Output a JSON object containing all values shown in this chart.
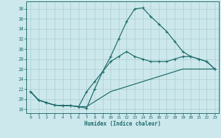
{
  "xlabel": "Humidex (Indice chaleur)",
  "background_color": "#cce8ec",
  "grid_color": "#aacccc",
  "line_color": "#1e6b6b",
  "x_ticks": [
    0,
    1,
    2,
    3,
    4,
    5,
    6,
    7,
    8,
    9,
    10,
    11,
    12,
    13,
    14,
    15,
    16,
    17,
    18,
    19,
    20,
    21,
    22,
    23
  ],
  "y_ticks": [
    18,
    20,
    22,
    24,
    26,
    28,
    30,
    32,
    34,
    36,
    38
  ],
  "ylim": [
    17.2,
    39.5
  ],
  "xlim": [
    -0.5,
    23.5
  ],
  "line1_x": [
    0,
    1,
    2,
    3,
    4,
    5,
    6,
    7,
    8,
    9,
    10,
    11,
    12,
    13,
    14,
    15,
    16,
    17,
    18,
    19,
    20,
    21,
    22,
    23
  ],
  "line1_y": [
    21.5,
    19.8,
    19.3,
    18.8,
    18.7,
    18.7,
    18.5,
    18.2,
    22.0,
    25.5,
    28.5,
    32.0,
    35.5,
    38.0,
    38.2,
    36.5,
    35.0,
    33.5,
    31.5,
    29.5,
    28.5,
    28.0,
    27.5,
    26.0
  ],
  "line2_x": [
    0,
    1,
    2,
    3,
    4,
    5,
    6,
    7,
    8,
    9,
    10,
    11,
    12,
    13,
    14,
    15,
    16,
    17,
    18,
    19,
    20,
    21,
    22,
    23
  ],
  "line2_y": [
    21.5,
    19.8,
    19.3,
    18.8,
    18.7,
    18.7,
    18.5,
    21.5,
    23.5,
    25.5,
    27.5,
    28.5,
    29.5,
    28.5,
    28.0,
    27.5,
    27.5,
    27.5,
    28.0,
    28.5,
    28.5,
    28.0,
    27.5,
    26.0
  ],
  "line3_x": [
    0,
    1,
    2,
    3,
    4,
    5,
    6,
    7,
    8,
    9,
    10,
    11,
    12,
    13,
    14,
    15,
    16,
    17,
    18,
    19,
    20,
    21,
    22,
    23
  ],
  "line3_y": [
    21.5,
    19.8,
    19.3,
    18.8,
    18.7,
    18.7,
    18.5,
    18.5,
    19.5,
    20.5,
    21.5,
    22.0,
    22.5,
    23.0,
    23.5,
    24.0,
    24.5,
    25.0,
    25.5,
    26.0,
    26.0,
    26.0,
    26.0,
    26.0
  ]
}
